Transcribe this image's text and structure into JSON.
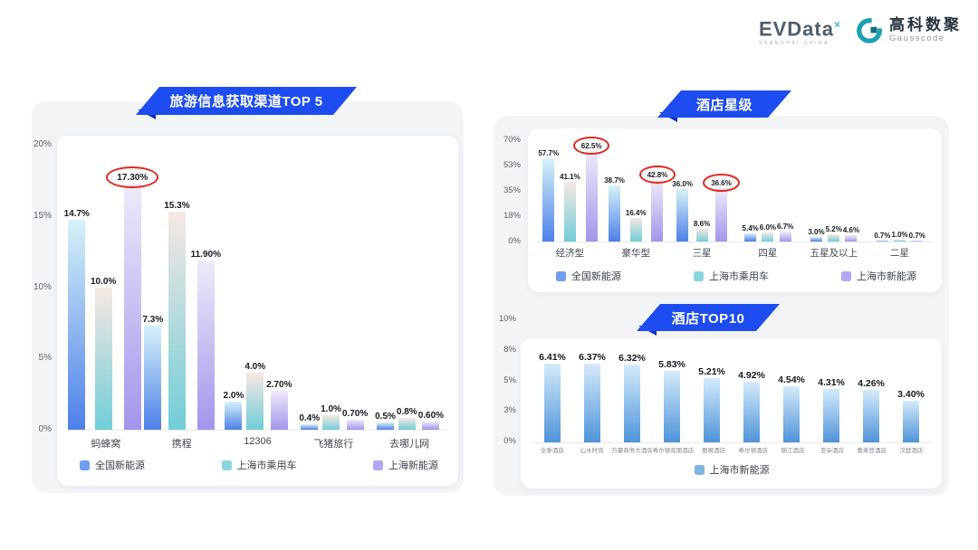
{
  "header": {
    "evdata": {
      "word": "EVData",
      "superscript": "×",
      "subtext": "SHANGHAI CHINA"
    },
    "gausscode": {
      "cn": "高科数聚",
      "en": "Gausscode"
    }
  },
  "colors": {
    "banner_blue": "#1d4cf0",
    "annotation_red": "#e3261d",
    "panel_gray": "#f3f4f6",
    "series_national_ev": {
      "top": "#d7f2f8",
      "bottom": "#4d80e8",
      "swatch": "#6f9ff1"
    },
    "series_shanghai_passenger": {
      "top": "#f6e8e3",
      "bottom": "#72cdd7",
      "swatch": "#8ad6dd"
    },
    "series_shanghai_ev": {
      "top": "#efeaf9",
      "bottom": "#a395ec",
      "swatch": "#b4a6f4"
    },
    "hotel_bar": {
      "top": "#d4ebfa",
      "bottom": "#4f93d9",
      "swatch": "#7fb4e4"
    }
  },
  "chart_data": [
    {
      "id": "travel_channels",
      "type": "bar",
      "title": "旅游信息获取渠道TOP 5",
      "categories": [
        "蚂蜂窝",
        "携程",
        "12306",
        "飞猪旅行",
        "去哪儿网"
      ],
      "series": [
        {
          "name": "全国新能源",
          "values": [
            14.7,
            7.3,
            2.0,
            0.4,
            0.5
          ],
          "labels": [
            "14.7%",
            "7.3%",
            "2.0%",
            "0.4%",
            "0.5%"
          ]
        },
        {
          "name": "上海市乘用车",
          "values": [
            10.0,
            15.3,
            4.0,
            1.0,
            0.8
          ],
          "labels": [
            "10.0%",
            "15.3%",
            "4.0%",
            "1.0%",
            "0.8%"
          ]
        },
        {
          "name": "上海新能源",
          "values": [
            17.3,
            11.9,
            2.7,
            0.7,
            0.6
          ],
          "labels": [
            "17.30%",
            "11.90%",
            "2.70%",
            "0.70%",
            "0.60%"
          ]
        }
      ],
      "yticks": [
        "20%",
        "15%",
        "10%",
        "5%",
        "0%"
      ],
      "ylim": [
        0,
        20
      ],
      "grid": false,
      "legend_position": "bottom",
      "circled": [
        {
          "series": 2,
          "category": 0
        }
      ]
    },
    {
      "id": "hotel_star",
      "type": "bar",
      "title": "酒店星级",
      "categories": [
        "经济型",
        "豪华型",
        "三星",
        "四星",
        "五星及以上",
        "二星"
      ],
      "series": [
        {
          "name": "全国新能源",
          "values": [
            57.7,
            38.7,
            36.0,
            5.4,
            3.0,
            0.7
          ],
          "labels": [
            "57.7%",
            "38.7%",
            "36.0%",
            "5.4%",
            "3.0%",
            "0.7%"
          ]
        },
        {
          "name": "上海市乘用车",
          "values": [
            41.1,
            16.4,
            8.6,
            6.0,
            5.2,
            1.0
          ],
          "labels": [
            "41.1%",
            "16.4%",
            "8.6%",
            "6.0%",
            "5.2%",
            "1.0%"
          ]
        },
        {
          "name": "上海市新能源",
          "values": [
            62.5,
            42.8,
            36.6,
            6.7,
            4.6,
            0.7
          ],
          "labels": [
            "62.5%",
            "42.8%",
            "36.6%",
            "6.7%",
            "4.6%",
            "0.7%"
          ]
        }
      ],
      "yticks": [
        "70%",
        "53%",
        "35%",
        "18%",
        "0%"
      ],
      "ylim": [
        0,
        70
      ],
      "grid": false,
      "legend_position": "bottom",
      "circled": [
        {
          "series": 2,
          "category": 0
        },
        {
          "series": 2,
          "category": 1
        },
        {
          "series": 2,
          "category": 2
        }
      ]
    },
    {
      "id": "hotel_top10",
      "type": "bar",
      "title": "酒店TOP10",
      "categories": [
        "全季酒店",
        "山水时尚",
        "万豪商务大酒店",
        "希尔顿欢朋酒店",
        "丽枫酒店",
        "希尔顿酒店",
        "锦江酒店",
        "亚朵酒店",
        "喜来登酒店",
        "汉庭酒店"
      ],
      "series": [
        {
          "name": "上海市新能源",
          "values": [
            6.41,
            6.37,
            6.32,
            5.83,
            5.21,
            4.92,
            4.54,
            4.31,
            4.26,
            3.4
          ],
          "labels": [
            "6.41%",
            "6.37%",
            "6.32%",
            "5.83%",
            "5.21%",
            "4.92%",
            "4.54%",
            "4.31%",
            "4.26%",
            "3.40%"
          ]
        }
      ],
      "yticks": [
        "10%",
        "8%",
        "5%",
        "3%",
        "0%"
      ],
      "ylim": [
        0,
        10
      ],
      "grid": false,
      "legend_position": "bottom",
      "circled": []
    }
  ]
}
